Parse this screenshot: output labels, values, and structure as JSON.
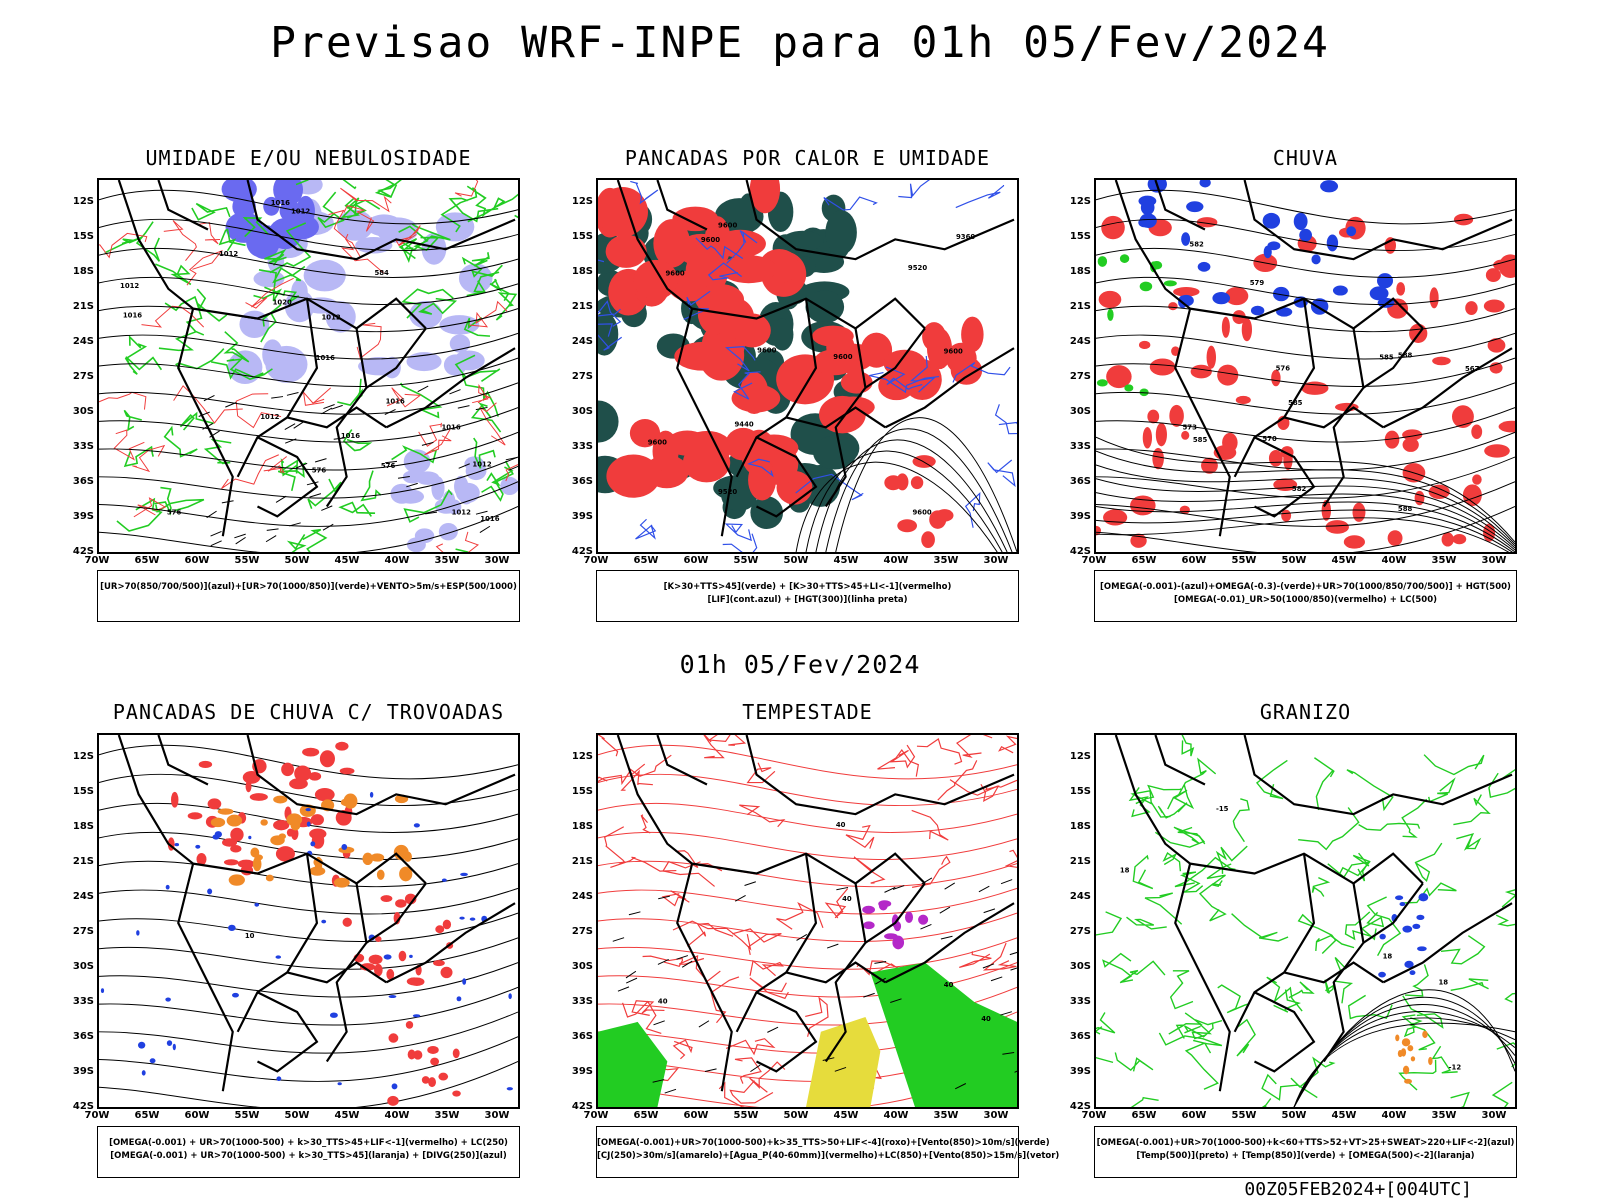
{
  "title": "Previsao WRF-INPE  para 01h 05/Fev/2024",
  "mid_date": "01h 05/Fev/2024",
  "footer": "00Z05FEB2024+[004UTC]",
  "lat_labels": [
    "12S",
    "15S",
    "18S",
    "21S",
    "24S",
    "27S",
    "30S",
    "33S",
    "36S",
    "39S",
    "42S"
  ],
  "lon_labels": [
    "70W",
    "65W",
    "60W",
    "55W",
    "50W",
    "45W",
    "40W",
    "35W",
    "30W"
  ],
  "colors": {
    "blue_fill": "#6a6af0",
    "light_blue": "#b8b8f5",
    "green": "#22cc22",
    "red": "#f03c3c",
    "dark_teal": "#1f4f4a",
    "orange": "#f08a28",
    "yellow": "#e6dc3c",
    "purple": "#b428c8",
    "blue_line": "#3050e8"
  },
  "panels": [
    {
      "id": "umidade",
      "title": "UMIDADE E/OU NEBULOSIDADE",
      "legend": [
        "[UR>70(850/700/500)](azul)+[UR>70(1000/850)](verde)+VENTO>5m/s+ESP(500/1000)"
      ],
      "contour_labels": [
        "1012",
        "1012",
        "1016",
        "1016",
        "1016",
        "1016",
        "1012",
        "1016",
        "1016",
        "1012",
        "1012",
        "1012",
        "1012",
        "576",
        "576",
        "576",
        "584",
        "1020",
        "1016"
      ]
    },
    {
      "id": "pancadas-calor",
      "title": "PANCADAS POR CALOR E UMIDADE",
      "legend": [
        "[K>30+TTS>45](verde) + [K>30+TTS>45+LI<-1](vermelho)",
        "[LIF](cont.azul) + [HGT(300)](linha preta)"
      ],
      "contour_labels": [
        "9600",
        "9600",
        "9600",
        "9600",
        "9600",
        "9600",
        "9600",
        "9520",
        "9440",
        "9360",
        "9520",
        "9600"
      ]
    },
    {
      "id": "chuva",
      "title": "CHUVA",
      "legend": [
        "[OMEGA(-0.001)-(azul)+OMEGA(-0.3)-(verde)+UR>70(1000/850/700/500)] + HGT(500)",
        "[OMEGA(-0.01)_UR>50(1000/850)(vermelho) + LC(500)"
      ],
      "contour_labels": [
        "585",
        "588",
        "588",
        "585",
        "582",
        "579",
        "576",
        "573",
        "570",
        "567",
        "585",
        "582"
      ]
    },
    {
      "id": "pancadas-trovoadas",
      "title": "PANCADAS DE CHUVA C/ TROVOADAS",
      "legend": [
        "[OMEGA(-0.001) + UR>70(1000-500) + k>30_TTS>45+LIF<-1](vermelho) + LC(250)",
        "[OMEGA(-0.001) + UR>70(1000-500) + k>30_TTS>45](laranja) + [DIVG(250)](azul)"
      ],
      "contour_labels": [
        "10"
      ]
    },
    {
      "id": "tempestade",
      "title": "TEMPESTADE",
      "legend": [
        "[OMEGA(-0.001)+UR>70(1000-500)+k>35_TTS>50+LIF<-4](roxo)+[Vento(850)>10m/s](verde)",
        "[CJ(250)>30m/s](amarelo)+[Agua_P(40-60mm)](vermelho)+LC(850)+[Vento(850)>15m/s](vetor)"
      ],
      "contour_labels": [
        "40",
        "40",
        "40",
        "40",
        "40"
      ]
    },
    {
      "id": "granizo",
      "title": "GRANIZO",
      "legend": [
        "[OMEGA(-0.001)+UR>70(1000-500)+k<60+TTS>52+VT>25+SWEAT>220+LIF<-2](azul)",
        "[Temp(500)](preto) + [Temp(850)](verde) + [OMEGA(500)<-2](laranja)"
      ],
      "contour_labels": [
        "-15",
        "-12",
        "18",
        "18",
        "18"
      ]
    }
  ]
}
